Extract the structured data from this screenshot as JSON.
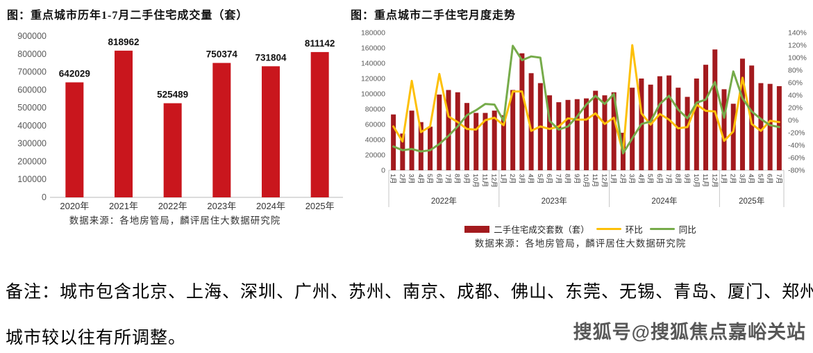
{
  "page": {
    "note_line1": "备注：城市包含北京、上海、深圳、广州、苏州、南京、成都、佛山、东莞、无锡、青岛、厦门、郑州，",
    "note_line2": "城市较以往有所调整。",
    "watermark": "搜狐号@搜狐焦点嘉峪关站"
  },
  "chart_data": [
    {
      "type": "bar",
      "title": "图：重点城市历年1-7月二手住宅成交量（套）",
      "source": "数据来源：各地房管局，麟评居住大数据研究院",
      "categories": [
        "2020年",
        "2021年",
        "2022年",
        "2023年",
        "2024年",
        "2025年"
      ],
      "values": [
        642029,
        818962,
        525489,
        750374,
        731804,
        811142
      ],
      "ylim": [
        0,
        900000
      ],
      "ytick_step": 100000,
      "bar_color": "#c9161d",
      "grid": false,
      "data_labels": true,
      "legend_position": "none"
    },
    {
      "type": "combo_bar_line",
      "title": "图：重点城市二手住宅月度走势",
      "source": "数据来源：各地房管局，麟评居住大数据研究院",
      "legend_position": "bottom",
      "left_axis": {
        "ylim": [
          0,
          180000
        ],
        "tick_step": 20000
      },
      "right_axis": {
        "ylim": [
          -80,
          140
        ],
        "tick_step": 20,
        "unit": "%"
      },
      "year_groups": [
        {
          "label": "2022年",
          "count": 12
        },
        {
          "label": "2023年",
          "count": 12
        },
        {
          "label": "2024年",
          "count": 12
        },
        {
          "label": "2025年",
          "count": 7
        }
      ],
      "month_labels": [
        "1月",
        "2月",
        "3月",
        "4月",
        "5月",
        "6月",
        "7月",
        "8月",
        "9月",
        "10月",
        "11月",
        "12月",
        "1月",
        "2月",
        "3月",
        "4月",
        "5月",
        "6月",
        "7月",
        "8月",
        "9月",
        "10月",
        "11月",
        "12月",
        "1月",
        "2月",
        "3月",
        "4月",
        "5月",
        "6月",
        "7月",
        "8月",
        "9月",
        "10月",
        "11月",
        "12月",
        "1月",
        "2月",
        "3月",
        "4月",
        "5月",
        "6月",
        "7月"
      ],
      "series": [
        {
          "name": "二手住宅成交套数（套）",
          "type": "bar",
          "axis": "left",
          "color": "#a31a1e",
          "values": [
            73000,
            48000,
            78000,
            63000,
            57000,
            99000,
            105000,
            102000,
            88000,
            75000,
            75000,
            78000,
            72000,
            105000,
            153000,
            127000,
            114000,
            98000,
            89000,
            92000,
            93000,
            94000,
            104000,
            98000,
            102000,
            49000,
            108000,
            120000,
            112000,
            123000,
            124000,
            108000,
            96000,
            120000,
            138000,
            158000,
            106000,
            87000,
            146000,
            137000,
            114000,
            113000,
            110000
          ]
        },
        {
          "name": "环比",
          "type": "line",
          "axis": "right",
          "color": "#fdc008",
          "values": [
            -10,
            -34,
            63,
            -19,
            -10,
            74,
            6,
            -3,
            -14,
            -15,
            0,
            4,
            -8,
            46,
            46,
            -17,
            -10,
            -14,
            -10,
            3,
            1,
            1,
            11,
            -6,
            4,
            -52,
            120,
            11,
            -7,
            10,
            1,
            -13,
            -11,
            25,
            15,
            14,
            -33,
            -18,
            68,
            -6,
            -17,
            -1,
            -3
          ]
        },
        {
          "name": "同比",
          "type": "line",
          "axis": "right",
          "color": "#76ab4a",
          "values": [
            -42,
            -48,
            -46,
            -50,
            -48,
            -38,
            -25,
            -10,
            8,
            16,
            26,
            25,
            -1,
            119,
            96,
            102,
            100,
            -1,
            -15,
            -10,
            6,
            25,
            39,
            26,
            42,
            -53,
            -29,
            -6,
            -2,
            26,
            39,
            17,
            3,
            28,
            33,
            61,
            4,
            78,
            35,
            14,
            2,
            -8,
            -11
          ]
        }
      ]
    }
  ]
}
